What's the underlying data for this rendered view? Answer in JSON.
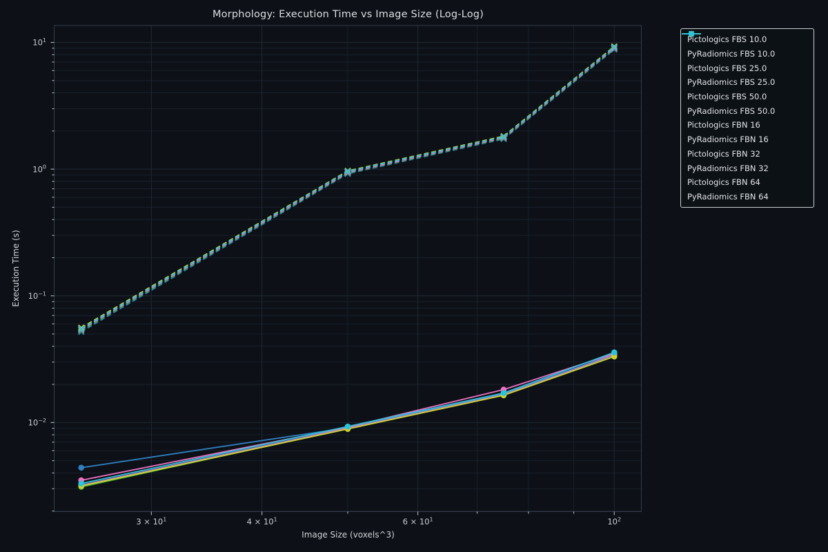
{
  "figure": {
    "colors": {
      "background": "#0d1117",
      "plot_background": "#0d1117",
      "grid_major": "#232b37",
      "grid_minor": "#1b2230",
      "spine": "#323c4b",
      "tick_mark": "#b9bdc2",
      "tick_label": "#c9cdd2",
      "axis_label": "#cfd3d7",
      "title": "#dadde1",
      "legend_border": "#ccd0d5",
      "legend_text": "#e3e5e8"
    }
  },
  "chart_data": {
    "type": "line",
    "title": "Morphology: Execution Time vs Image Size (Log-Log)",
    "xlabel": "Image Size (voxels^3)",
    "ylabel": "Execution Time (s)",
    "x_scale": "log",
    "y_scale": "log",
    "grid": true,
    "legend_position": "upper right",
    "x": [
      25,
      50,
      75,
      100
    ],
    "xlim": [
      23.3,
      107.3
    ],
    "ylim": [
      0.00198,
      13.6
    ],
    "x_major_ticks": [
      {
        "value": 30,
        "mantissa": "3",
        "exponent": "1"
      },
      {
        "value": 40,
        "mantissa": "4",
        "exponent": "1"
      },
      {
        "value": 60,
        "mantissa": "6",
        "exponent": "1"
      },
      {
        "value": 100,
        "mantissa": "",
        "exponent": "2"
      }
    ],
    "x_minor_ticks": [
      50,
      70,
      80,
      90
    ],
    "y_major_ticks": [
      {
        "value": 10,
        "exponent": "1"
      },
      {
        "value": 1,
        "exponent": "0"
      },
      {
        "value": 0.1,
        "exponent": "−1"
      },
      {
        "value": 0.01,
        "exponent": "−2"
      }
    ],
    "series": [
      {
        "name": "Pictologics FBS 10.0",
        "tool": "Pictologics",
        "setting": "FBS 10.0",
        "color": "#2f7fc1",
        "linestyle": "solid",
        "marker": "circle",
        "values": [
          0.0044,
          0.0091,
          0.0168,
          0.0345
        ]
      },
      {
        "name": "PyRadiomics FBS 10.0",
        "tool": "PyRadiomics",
        "setting": "FBS 10.0",
        "color": "#2f7fc1",
        "linestyle": "dashed",
        "marker": "x",
        "values": [
          0.052,
          0.92,
          1.73,
          8.8
        ]
      },
      {
        "name": "Pictologics FBS 25.0",
        "tool": "Pictologics",
        "setting": "FBS 25.0",
        "color": "#2fa42f",
        "linestyle": "solid",
        "marker": "circle",
        "values": [
          0.0031,
          0.009,
          0.0165,
          0.034
        ]
      },
      {
        "name": "PyRadiomics FBS 25.0",
        "tool": "PyRadiomics",
        "setting": "FBS 25.0",
        "color": "#2fa42f",
        "linestyle": "dashed",
        "marker": "x",
        "values": [
          0.053,
          0.93,
          1.75,
          8.9
        ]
      },
      {
        "name": "Pictologics FBS 50.0",
        "tool": "Pictologics",
        "setting": "FBS 50.0",
        "color": "#a77fd3",
        "linestyle": "solid",
        "marker": "circle",
        "values": [
          0.0032,
          0.00905,
          0.0166,
          0.0342
        ]
      },
      {
        "name": "PyRadiomics FBS 50.0",
        "tool": "PyRadiomics",
        "setting": "FBS 50.0",
        "color": "#a77fd3",
        "linestyle": "dashed",
        "marker": "x",
        "values": [
          0.054,
          0.94,
          1.77,
          9.0
        ]
      },
      {
        "name": "Pictologics FBN 16",
        "tool": "Pictologics",
        "setting": "FBN 16",
        "color": "#ee70c3",
        "linestyle": "solid",
        "marker": "circle",
        "values": [
          0.0035,
          0.0092,
          0.0182,
          0.035
        ]
      },
      {
        "name": "PyRadiomics FBN 16",
        "tool": "PyRadiomics",
        "setting": "FBN 16",
        "color": "#ee70c3",
        "linestyle": "dashed",
        "marker": "x",
        "values": [
          0.0545,
          0.95,
          1.78,
          9.1
        ]
      },
      {
        "name": "Pictologics FBN 32",
        "tool": "Pictologics",
        "setting": "FBN 32",
        "color": "#ccd02e",
        "linestyle": "solid",
        "marker": "circle",
        "values": [
          0.00315,
          0.0089,
          0.0164,
          0.0332
        ]
      },
      {
        "name": "PyRadiomics FBN 32",
        "tool": "PyRadiomics",
        "setting": "FBN 32",
        "color": "#ccd02e",
        "linestyle": "dashed",
        "marker": "x",
        "values": [
          0.056,
          0.97,
          1.82,
          9.3
        ]
      },
      {
        "name": "Pictologics FBN 64",
        "tool": "Pictologics",
        "setting": "FBN 64",
        "color": "#2cc3d7",
        "linestyle": "solid",
        "marker": "circle",
        "values": [
          0.0033,
          0.0093,
          0.0171,
          0.0358
        ]
      },
      {
        "name": "PyRadiomics FBN 64",
        "tool": "PyRadiomics",
        "setting": "FBN 64",
        "color": "#2cc3d7",
        "linestyle": "dashed",
        "marker": "x",
        "values": [
          0.055,
          0.96,
          1.8,
          9.2
        ]
      }
    ]
  }
}
